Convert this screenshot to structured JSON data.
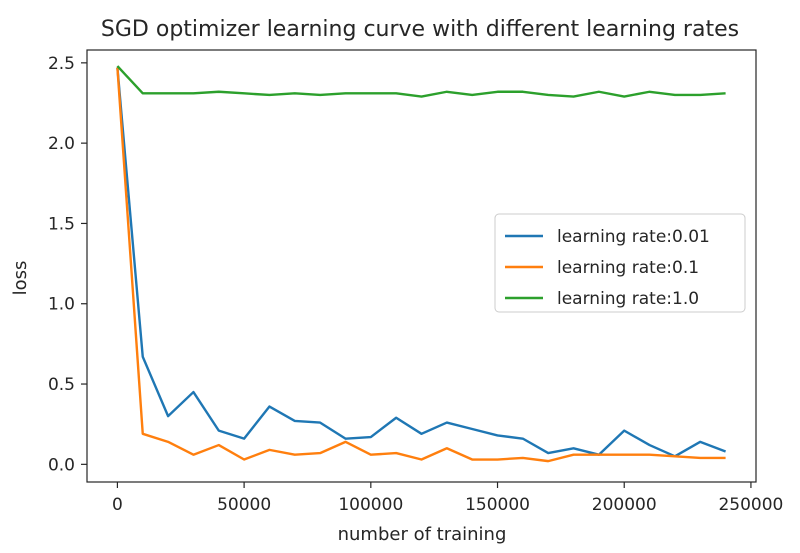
{
  "chart_data": {
    "type": "line",
    "title": "SGD optimizer learning curve with different learning rates",
    "xlabel": "number of training",
    "ylabel": "loss",
    "xlim": [
      -12000,
      252000
    ],
    "ylim": [
      -0.11,
      2.58
    ],
    "xticks": [
      0,
      50000,
      100000,
      150000,
      200000,
      250000
    ],
    "yticks": [
      0.0,
      0.5,
      1.0,
      1.5,
      2.0,
      2.5
    ],
    "xtick_labels": [
      "0",
      "50000",
      "100000",
      "150000",
      "200000",
      "250000"
    ],
    "ytick_labels": [
      "0.0",
      "0.5",
      "1.0",
      "1.5",
      "2.0",
      "2.5"
    ],
    "grid": false,
    "legend_position": "center-right",
    "x": [
      0,
      10000,
      20000,
      30000,
      40000,
      50000,
      60000,
      70000,
      80000,
      90000,
      100000,
      110000,
      120000,
      130000,
      140000,
      150000,
      160000,
      170000,
      180000,
      190000,
      200000,
      210000,
      220000,
      230000,
      240000
    ],
    "series": [
      {
        "name": "learning rate:0.01",
        "color": "#1f77b4",
        "values": [
          2.47,
          0.67,
          0.3,
          0.45,
          0.21,
          0.16,
          0.36,
          0.27,
          0.26,
          0.16,
          0.17,
          0.29,
          0.19,
          0.26,
          0.22,
          0.18,
          0.16,
          0.07,
          0.1,
          0.06,
          0.21,
          0.12,
          0.05,
          0.14,
          0.08
        ]
      },
      {
        "name": "learning rate:0.1",
        "color": "#ff7f0e",
        "values": [
          2.47,
          0.19,
          0.14,
          0.06,
          0.12,
          0.03,
          0.09,
          0.06,
          0.07,
          0.14,
          0.06,
          0.07,
          0.03,
          0.1,
          0.03,
          0.03,
          0.04,
          0.02,
          0.06,
          0.06,
          0.06,
          0.06,
          0.05,
          0.04,
          0.04
        ]
      },
      {
        "name": "learning rate:1.0",
        "color": "#2ca02c",
        "values": [
          2.48,
          2.31,
          2.31,
          2.31,
          2.32,
          2.31,
          2.3,
          2.31,
          2.3,
          2.31,
          2.31,
          2.31,
          2.29,
          2.32,
          2.3,
          2.32,
          2.32,
          2.3,
          2.29,
          2.32,
          2.29,
          2.32,
          2.3,
          2.3,
          2.31
        ]
      }
    ]
  }
}
